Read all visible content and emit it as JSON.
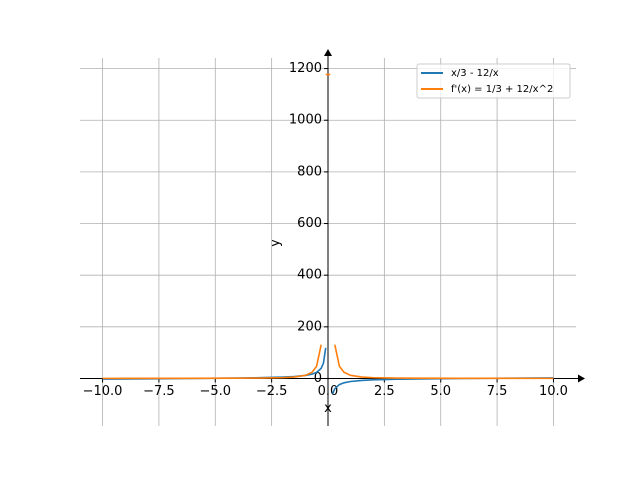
{
  "chart_data": {
    "type": "line",
    "x_label": "x",
    "y_label": "y",
    "x": [
      -10,
      -8,
      -6,
      -4,
      -3,
      -2,
      -1.5,
      -1,
      -0.707,
      -0.505,
      -0.303,
      -0.202,
      -0.101,
      0.101,
      0.202,
      0.303,
      0.505,
      0.707,
      1,
      1.5,
      2,
      3,
      4,
      6,
      8,
      10
    ],
    "series": [
      {
        "name": "x/3 - 12/x",
        "color": "#1f77b4",
        "values": [
          -2.133,
          -1.167,
          0,
          1.667,
          3,
          5.333,
          7.5,
          11.667,
          16.74,
          23.59,
          39.5,
          59.34,
          118.78,
          null,
          -59.34,
          -39.5,
          -23.59,
          -16.74,
          -11.667,
          -7.5,
          -5.333,
          -3,
          -1.667,
          0,
          1.167,
          2.133
        ]
      },
      {
        "name": "f'(x) = 1/3 + 12/x^2",
        "color": "#ff7f0e",
        "values": [
          0.453,
          0.521,
          0.667,
          1.083,
          1.667,
          3.333,
          5.667,
          12.333,
          24.34,
          47.39,
          131.0,
          null,
          1176.7,
          1176.7,
          null,
          131.0,
          47.39,
          24.34,
          12.333,
          5.667,
          3.333,
          1.667,
          1.083,
          0.667,
          0.521,
          0.453
        ]
      }
    ],
    "xlim": [
      -11,
      11
    ],
    "ylim": [
      -184,
      1241
    ],
    "xticks": [
      {
        "value": -10,
        "label": "−10.0"
      },
      {
        "value": -7.5,
        "label": "−7.5"
      },
      {
        "value": -5,
        "label": "−5.0"
      },
      {
        "value": -2.5,
        "label": "−2.5"
      },
      {
        "value": 0,
        "label": "0.0"
      },
      {
        "value": 2.5,
        "label": "2.5"
      },
      {
        "value": 5,
        "label": "5.0"
      },
      {
        "value": 7.5,
        "label": "7.5"
      },
      {
        "value": 10,
        "label": "10.0"
      }
    ],
    "yticks": [
      0,
      200,
      400,
      600,
      800,
      1000,
      1200
    ],
    "grid": true,
    "legend": "upper-right"
  }
}
